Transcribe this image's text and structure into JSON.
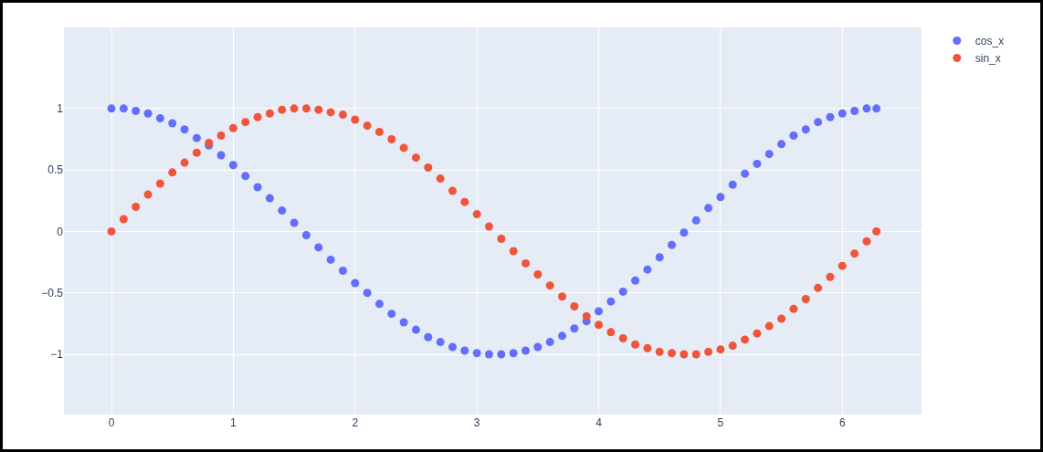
{
  "chart_data": {
    "type": "scatter",
    "marker": "circle",
    "grid": true,
    "legend": "top right",
    "x": [
      0,
      0.1,
      0.2,
      0.3,
      0.4,
      0.5,
      0.6,
      0.7,
      0.8,
      0.9,
      1.0,
      1.1,
      1.2,
      1.3,
      1.4,
      1.5,
      1.6,
      1.7,
      1.8,
      1.9,
      2.0,
      2.1,
      2.2,
      2.3,
      2.4,
      2.5,
      2.6,
      2.7,
      2.8,
      2.9,
      3.0,
      3.1,
      3.2,
      3.3,
      3.4,
      3.5,
      3.6,
      3.7,
      3.8,
      3.9,
      4.0,
      4.1,
      4.2,
      4.3,
      4.4,
      4.5,
      4.6,
      4.7,
      4.8,
      4.9,
      5.0,
      5.1,
      5.2,
      5.3,
      5.4,
      5.5,
      5.6,
      5.7,
      5.8,
      5.9,
      6.0,
      6.1,
      6.2,
      6.28
    ],
    "series": [
      {
        "name": "cos_x",
        "color": "#636efa",
        "values": [
          1,
          1.0,
          0.98,
          0.96,
          0.92,
          0.88,
          0.83,
          0.76,
          0.7,
          0.62,
          0.54,
          0.45,
          0.36,
          0.27,
          0.17,
          0.07,
          -0.03,
          -0.13,
          -0.23,
          -0.32,
          -0.42,
          -0.5,
          -0.59,
          -0.67,
          -0.74,
          -0.8,
          -0.86,
          -0.9,
          -0.94,
          -0.97,
          -0.99,
          -1.0,
          -1.0,
          -0.99,
          -0.97,
          -0.94,
          -0.9,
          -0.85,
          -0.79,
          -0.73,
          -0.65,
          -0.57,
          -0.49,
          -0.4,
          -0.31,
          -0.21,
          -0.11,
          -0.01,
          0.09,
          0.19,
          0.28,
          0.38,
          0.47,
          0.55,
          0.63,
          0.71,
          0.78,
          0.83,
          0.89,
          0.93,
          0.96,
          0.98,
          1.0,
          1
        ]
      },
      {
        "name": "sin_x",
        "color": "#ef553b",
        "values": [
          0,
          0.1,
          0.2,
          0.3,
          0.39,
          0.48,
          0.56,
          0.64,
          0.72,
          0.78,
          0.84,
          0.89,
          0.93,
          0.96,
          0.99,
          1.0,
          1.0,
          0.99,
          0.97,
          0.95,
          0.91,
          0.86,
          0.81,
          0.75,
          0.68,
          0.6,
          0.52,
          0.43,
          0.33,
          0.24,
          0.14,
          0.04,
          -0.06,
          -0.16,
          -0.26,
          -0.35,
          -0.44,
          -0.53,
          -0.61,
          -0.69,
          -0.76,
          -0.82,
          -0.87,
          -0.92,
          -0.95,
          -0.98,
          -0.99,
          -1.0,
          -1.0,
          -0.98,
          -0.96,
          -0.93,
          -0.88,
          -0.83,
          -0.77,
          -0.71,
          -0.63,
          -0.55,
          -0.46,
          -0.37,
          -0.28,
          -0.18,
          -0.08,
          0
        ]
      }
    ],
    "xlim": [
      -0.39,
      6.65
    ],
    "xticks": [
      0,
      1,
      2,
      3,
      4,
      5,
      6
    ],
    "ylim": [
      -1.49,
      1.66
    ],
    "yticks": [
      {
        "value": -1,
        "label": "−1"
      },
      {
        "value": -0.5,
        "label": "−0.5"
      },
      0,
      0.5,
      1
    ]
  }
}
